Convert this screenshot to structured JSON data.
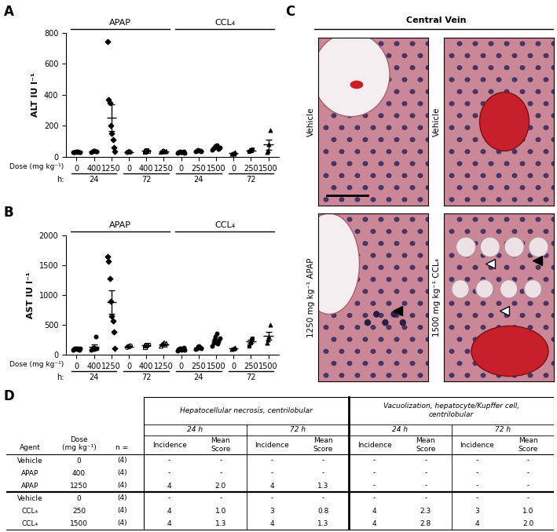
{
  "chart_data": [
    {
      "type": "scatter",
      "panel": "A",
      "ylabel": "ALT IU l⁻¹",
      "xlabel": "Dose (mg kg⁻¹)",
      "time_label": "h:",
      "color": "#000000",
      "categories": [
        "0",
        "400",
        "1250",
        "0",
        "400",
        "1250",
        "0",
        "250",
        "1500",
        "0",
        "250",
        "1500"
      ],
      "agents": [
        "APAP",
        "APAP",
        "APAP",
        "APAP",
        "APAP",
        "APAP",
        "CCL₄",
        "CCL₄",
        "CCL₄",
        "CCL₄",
        "CCL₄",
        "CCL₄"
      ],
      "times": [
        "24",
        "24",
        "24",
        "72",
        "72",
        "72",
        "24",
        "24",
        "24",
        "72",
        "72",
        "72"
      ],
      "markers": [
        "circle",
        "circle",
        "diamond",
        "open_circle",
        "open_square",
        "open_triangle",
        "circle",
        "circle",
        "circle",
        "triangle",
        "square",
        "triangle"
      ],
      "points": [
        [
          28,
          30,
          32,
          35,
          30,
          33,
          29,
          31
        ],
        [
          30,
          35,
          40,
          38,
          33,
          36
        ],
        [
          745,
          370,
          350,
          200,
          150,
          110,
          60,
          35
        ],
        [
          28,
          32,
          35,
          30
        ],
        [
          30,
          40,
          45,
          35
        ],
        [
          30,
          35,
          40,
          38,
          32,
          36
        ],
        [
          25,
          30,
          35,
          28,
          32,
          30,
          33,
          27
        ],
        [
          35,
          40,
          45,
          38,
          42,
          36
        ],
        [
          45,
          55,
          60,
          70,
          75,
          65,
          50,
          62
        ],
        [
          20,
          25,
          22,
          28
        ],
        [
          35,
          45,
          40,
          50
        ],
        [
          30,
          40,
          80,
          170
        ]
      ],
      "mean": [
        31,
        35,
        252,
        31,
        38,
        35,
        30,
        39,
        60,
        24,
        43,
        80
      ],
      "error": [
        1,
        1.5,
        85,
        1.5,
        3,
        1.5,
        1.2,
        1.6,
        3.6,
        2,
        3,
        32
      ],
      "ylim": [
        0,
        800
      ],
      "yticks": [
        0,
        200,
        400,
        600,
        800
      ]
    },
    {
      "type": "scatter",
      "panel": "B",
      "ylabel": "AST IU l⁻¹",
      "xlabel": "Dose (mg kg⁻¹)",
      "time_label": "h:",
      "color": "#000000",
      "categories": [
        "0",
        "400",
        "1250",
        "0",
        "400",
        "1250",
        "0",
        "250",
        "1500",
        "0",
        "250",
        "1500"
      ],
      "agents": [
        "APAP",
        "APAP",
        "APAP",
        "APAP",
        "APAP",
        "APAP",
        "CCL₄",
        "CCL₄",
        "CCL₄",
        "CCL₄",
        "CCL₄",
        "CCL₄"
      ],
      "times": [
        "24",
        "24",
        "24",
        "72",
        "72",
        "72",
        "24",
        "24",
        "24",
        "72",
        "72",
        "72"
      ],
      "markers": [
        "circle",
        "circle",
        "diamond",
        "open_circle",
        "open_square",
        "open_triangle",
        "circle",
        "circle",
        "circle",
        "triangle",
        "square",
        "triangle"
      ],
      "points": [
        [
          80,
          90,
          100,
          110,
          95,
          105,
          85,
          100
        ],
        [
          80,
          100,
          120,
          90,
          300,
          110
        ],
        [
          1640,
          1560,
          1270,
          900,
          640,
          560,
          380,
          100
        ],
        [
          120,
          140,
          130,
          150
        ],
        [
          130,
          150,
          160,
          170
        ],
        [
          140,
          170,
          180,
          200,
          160,
          190
        ],
        [
          70,
          90,
          100,
          110,
          80,
          95,
          120,
          85
        ],
        [
          90,
          110,
          130,
          150,
          120,
          100
        ],
        [
          150,
          200,
          250,
          300,
          350,
          180,
          220,
          280
        ],
        [
          90,
          100,
          110,
          120
        ],
        [
          150,
          200,
          250,
          280
        ],
        [
          200,
          250,
          300,
          500
        ]
      ],
      "mean": [
        96,
        133,
        881,
        135,
        153,
        173,
        94,
        117,
        241,
        105,
        220,
        312
      ],
      "error": [
        3.5,
        34,
        200,
        6,
        9,
        9,
        6,
        9,
        24,
        6,
        29,
        66
      ],
      "ylim": [
        0,
        2000
      ],
      "yticks": [
        0,
        500,
        1000,
        1500,
        2000
      ]
    }
  ],
  "images_panel": {
    "panel": "C",
    "title": "Central Vein",
    "images": [
      {
        "label": "Vehicle"
      },
      {
        "label": "Vehicle"
      },
      {
        "label": "1250 mg kg⁻¹ APAP"
      },
      {
        "label": "1500 mg kg⁻¹ CCL₄"
      }
    ]
  },
  "table_panel": {
    "panel": "D",
    "groups": [
      {
        "title": [
          "Hepatocellular necrosis, centrilobular"
        ],
        "times": [
          "24 h",
          "72 h"
        ]
      },
      {
        "title": [
          "Vacuolization, hepatocyte/Kupffer cell,",
          "centrilobular"
        ],
        "times": [
          "24 h",
          "72 h"
        ]
      }
    ],
    "columns": [
      [
        "Agent"
      ],
      [
        "Dose",
        "(mg kg⁻¹)"
      ],
      [
        "n ="
      ]
    ],
    "subcolumns": [
      [
        "Incidence"
      ],
      [
        "Mean",
        "Score"
      ]
    ],
    "rows": [
      [
        "Vehicle",
        0,
        "(4)",
        "-",
        "-",
        "-",
        "-",
        "-",
        "-",
        "-",
        "-"
      ],
      [
        "APAP",
        400,
        "(4)",
        "-",
        "-",
        "-",
        "-",
        "-",
        "-",
        "-",
        "-"
      ],
      [
        "APAP",
        1250,
        "(4)",
        4,
        2.0,
        4,
        1.3,
        "-",
        "-",
        "-",
        "-"
      ],
      [
        "Vehicle",
        0,
        "(4)",
        "-",
        "-",
        "-",
        "-",
        "-",
        "-",
        "-",
        "-"
      ],
      [
        "CCL₄",
        250,
        "(4)",
        4,
        1.0,
        3,
        0.8,
        4,
        2.3,
        3,
        1.0
      ],
      [
        "CCL₄",
        1500,
        "(4)",
        4,
        1.3,
        4,
        1.3,
        4,
        2.8,
        4,
        2.0
      ]
    ]
  }
}
